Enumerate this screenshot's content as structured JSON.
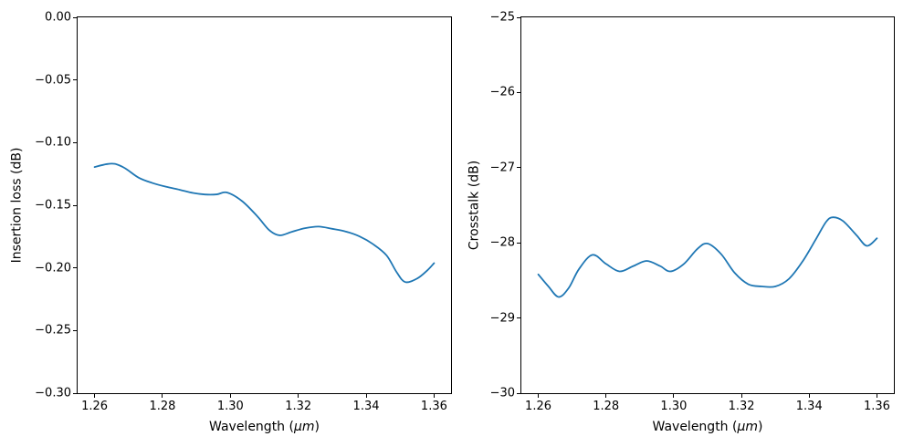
{
  "figure": {
    "background": "#ffffff",
    "accent_line_color": "#1f77b4"
  },
  "chart_data": [
    {
      "type": "line",
      "title": "",
      "xlabel": {
        "prefix": "Wavelength (",
        "math": "μm",
        "suffix": ")"
      },
      "ylabel": "Insertion loss (dB)",
      "xlim": [
        1.255,
        1.365
      ],
      "ylim": [
        -0.3,
        0.0
      ],
      "grid": false,
      "legend": null,
      "xticks": {
        "values": [
          1.26,
          1.28,
          1.3,
          1.32,
          1.34,
          1.36
        ],
        "labels": [
          "1.26",
          "1.28",
          "1.30",
          "1.32",
          "1.34",
          "1.36"
        ]
      },
      "yticks": {
        "values": [
          0.0,
          -0.05,
          -0.1,
          -0.15,
          -0.2,
          -0.25,
          -0.3
        ],
        "labels": [
          "0.00",
          "−0.05",
          "−0.10",
          "−0.15",
          "−0.20",
          "−0.25",
          "−0.30"
        ]
      },
      "series": [
        {
          "name": "insertion-loss",
          "color": "#1f77b4",
          "x": [
            1.26,
            1.2635,
            1.266,
            1.269,
            1.273,
            1.277,
            1.281,
            1.285,
            1.289,
            1.2925,
            1.296,
            1.299,
            1.3035,
            1.308,
            1.3115,
            1.3145,
            1.318,
            1.322,
            1.326,
            1.33,
            1.334,
            1.338,
            1.342,
            1.346,
            1.349,
            1.3515,
            1.355,
            1.358,
            1.36
          ],
          "y": [
            -0.1195,
            -0.1172,
            -0.117,
            -0.1205,
            -0.128,
            -0.1322,
            -0.1352,
            -0.1376,
            -0.1402,
            -0.1414,
            -0.1413,
            -0.1398,
            -0.1468,
            -0.159,
            -0.17,
            -0.174,
            -0.1713,
            -0.1683,
            -0.167,
            -0.1688,
            -0.171,
            -0.1748,
            -0.181,
            -0.19,
            -0.2035,
            -0.2113,
            -0.2085,
            -0.202,
            -0.1962
          ]
        }
      ]
    },
    {
      "type": "line",
      "title": "",
      "xlabel": {
        "prefix": "Wavelength (",
        "math": "μm",
        "suffix": ")"
      },
      "ylabel": "Crosstalk (dB)",
      "xlim": [
        1.255,
        1.365
      ],
      "ylim": [
        -30,
        -25
      ],
      "grid": false,
      "legend": null,
      "xticks": {
        "values": [
          1.26,
          1.28,
          1.3,
          1.32,
          1.34,
          1.36
        ],
        "labels": [
          "1.26",
          "1.28",
          "1.30",
          "1.32",
          "1.34",
          "1.36"
        ]
      },
      "yticks": {
        "values": [
          -25,
          -26,
          -27,
          -28,
          -29,
          -30
        ],
        "labels": [
          "−25",
          "−26",
          "−27",
          "−28",
          "−29",
          "−30"
        ]
      },
      "series": [
        {
          "name": "crosstalk",
          "color": "#1f77b4",
          "x": [
            1.26,
            1.263,
            1.266,
            1.269,
            1.272,
            1.276,
            1.28,
            1.284,
            1.288,
            1.292,
            1.296,
            1.299,
            1.303,
            1.307,
            1.31,
            1.314,
            1.318,
            1.322,
            1.326,
            1.33,
            1.334,
            1.338,
            1.342,
            1.345,
            1.347,
            1.35,
            1.354,
            1.357,
            1.36
          ],
          "y": [
            -28.42,
            -28.58,
            -28.72,
            -28.6,
            -28.35,
            -28.16,
            -28.28,
            -28.38,
            -28.31,
            -28.24,
            -28.31,
            -28.38,
            -28.28,
            -28.08,
            -28.01,
            -28.15,
            -28.4,
            -28.55,
            -28.58,
            -28.58,
            -28.48,
            -28.25,
            -27.95,
            -27.72,
            -27.66,
            -27.71,
            -27.9,
            -28.04,
            -27.94
          ]
        }
      ]
    }
  ]
}
